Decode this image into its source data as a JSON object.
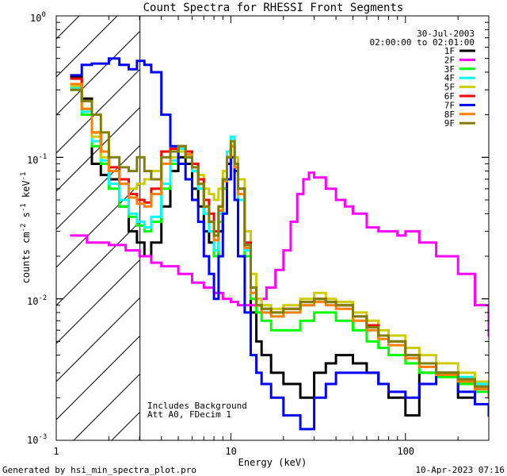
{
  "chart_data": {
    "type": "line",
    "title": "Count Spectra for RHESSI Front Segments",
    "xlabel": "Energy (keV)",
    "ylabel": {
      "base": "counts cm",
      "sup1": "-2",
      "mid1": " s",
      "sup2": "-1",
      "mid2": " keV",
      "sup3": "-1"
    },
    "xscale": "log",
    "yscale": "log",
    "xlim": [
      1,
      300
    ],
    "ylim": [
      0.001,
      1.0
    ],
    "x_ticks": [
      {
        "value": 1,
        "label": "1"
      },
      {
        "value": 10,
        "label": "10"
      },
      {
        "value": 100,
        "label": "100"
      }
    ],
    "y_ticks": [
      {
        "value": 1,
        "label": "10",
        "exp": "0"
      },
      {
        "value": 0.1,
        "label": "10",
        "exp": "-1"
      },
      {
        "value": 0.01,
        "label": "10",
        "exp": "-2"
      },
      {
        "value": 0.001,
        "label": "10",
        "exp": "-3"
      }
    ],
    "hatched_region": {
      "x_from": 1,
      "x_to": 3,
      "description": "attenuator-hatched low-energy region"
    },
    "legend": {
      "placement": "top-right",
      "date": "30-Jul-2003",
      "time_range": "02:00:00 to 02:01:00"
    },
    "annotations": [
      "Includes Background",
      "Att A0, FDecim 1"
    ],
    "series": [
      {
        "name": "1F",
        "color": "#000000",
        "x": [
          1.2,
          1.4,
          1.6,
          1.8,
          2.0,
          2.3,
          2.6,
          2.9,
          3.2,
          3.5,
          4.0,
          4.5,
          5.0,
          5.5,
          6.0,
          6.5,
          7.0,
          7.5,
          8.0,
          8.5,
          9.0,
          9.5,
          10.0,
          10.5,
          11.0,
          12,
          13,
          14,
          15,
          17,
          20,
          25,
          30,
          35,
          40,
          50,
          60,
          70,
          80,
          100,
          120,
          150,
          200,
          250,
          300
        ],
        "y": [
          0.37,
          0.26,
          0.09,
          0.075,
          0.07,
          0.045,
          0.03,
          0.025,
          0.02,
          0.025,
          0.045,
          0.08,
          0.1,
          0.09,
          0.06,
          0.045,
          0.03,
          0.025,
          0.02,
          0.03,
          0.06,
          0.09,
          0.12,
          0.08,
          0.05,
          0.02,
          0.008,
          0.005,
          0.004,
          0.003,
          0.0025,
          0.002,
          0.003,
          0.0035,
          0.004,
          0.0035,
          0.003,
          0.0025,
          0.002,
          0.0015,
          0.003,
          0.003,
          0.002,
          0.0018,
          0.0015
        ]
      },
      {
        "name": "2F",
        "color": "#ff00ff",
        "x": [
          1.2,
          1.5,
          2.0,
          2.5,
          3.0,
          3.5,
          4,
          5,
          6,
          7,
          8,
          9,
          10,
          11,
          12,
          14,
          16,
          18,
          20,
          22,
          24,
          26,
          28,
          30,
          35,
          40,
          45,
          50,
          60,
          70,
          80,
          90,
          100,
          120,
          150,
          200,
          250,
          300
        ],
        "y": [
          0.028,
          0.025,
          0.024,
          0.022,
          0.02,
          0.018,
          0.017,
          0.015,
          0.013,
          0.012,
          0.011,
          0.01,
          0.0095,
          0.009,
          0.009,
          0.01,
          0.012,
          0.016,
          0.022,
          0.035,
          0.055,
          0.07,
          0.078,
          0.072,
          0.06,
          0.05,
          0.045,
          0.04,
          0.032,
          0.03,
          0.03,
          0.028,
          0.03,
          0.025,
          0.02,
          0.015,
          0.009,
          0.0055
        ]
      },
      {
        "name": "3F",
        "color": "#00ff00",
        "x": [
          1.2,
          1.4,
          1.6,
          1.8,
          2.0,
          2.3,
          2.6,
          2.9,
          3.2,
          3.5,
          4.0,
          4.5,
          5.0,
          5.5,
          6.0,
          6.5,
          7.0,
          7.5,
          8.0,
          8.5,
          9.0,
          9.5,
          10.0,
          10.5,
          11.0,
          12,
          13,
          14,
          15,
          17,
          20,
          25,
          30,
          35,
          40,
          50,
          60,
          70,
          80,
          100,
          120,
          150,
          200,
          250,
          300
        ],
        "y": [
          0.3,
          0.2,
          0.12,
          0.09,
          0.06,
          0.045,
          0.038,
          0.033,
          0.03,
          0.035,
          0.06,
          0.09,
          0.11,
          0.1,
          0.08,
          0.06,
          0.04,
          0.03,
          0.02,
          0.035,
          0.06,
          0.1,
          0.13,
          0.09,
          0.05,
          0.02,
          0.01,
          0.008,
          0.007,
          0.006,
          0.006,
          0.007,
          0.008,
          0.008,
          0.007,
          0.006,
          0.005,
          0.0045,
          0.004,
          0.0035,
          0.003,
          0.0028,
          0.0025,
          0.0022,
          0.002
        ]
      },
      {
        "name": "4F",
        "color": "#00ffff",
        "x": [
          1.2,
          1.4,
          1.6,
          1.8,
          2.0,
          2.3,
          2.6,
          2.9,
          3.2,
          3.5,
          4.0,
          4.5,
          5.0,
          5.5,
          6.0,
          6.5,
          7.0,
          7.5,
          8.0,
          8.5,
          9.0,
          9.5,
          10.0,
          10.5,
          11.0,
          12,
          13,
          14,
          15,
          17,
          20,
          25,
          30,
          35,
          40,
          50,
          60,
          70,
          80,
          100,
          120,
          150,
          200,
          250,
          300
        ],
        "y": [
          0.31,
          0.21,
          0.13,
          0.095,
          0.065,
          0.05,
          0.04,
          0.035,
          0.032,
          0.038,
          0.065,
          0.095,
          0.115,
          0.1,
          0.08,
          0.06,
          0.04,
          0.03,
          0.022,
          0.04,
          0.07,
          0.11,
          0.14,
          0.09,
          0.05,
          0.022,
          0.012,
          0.009,
          0.008,
          0.0075,
          0.008,
          0.009,
          0.01,
          0.0095,
          0.009,
          0.0075,
          0.006,
          0.0055,
          0.005,
          0.004,
          0.0035,
          0.003,
          0.0028,
          0.0025,
          0.0022
        ]
      },
      {
        "name": "5F",
        "color": "#cccc00",
        "x": [
          1.2,
          1.4,
          1.6,
          1.8,
          2.0,
          2.3,
          2.6,
          2.9,
          3.2,
          3.5,
          4.0,
          4.5,
          5.0,
          5.5,
          6.0,
          6.5,
          7.0,
          7.5,
          8.0,
          8.5,
          9.0,
          9.5,
          10.0,
          10.5,
          11.0,
          12,
          13,
          14,
          15,
          17,
          20,
          25,
          30,
          35,
          40,
          50,
          60,
          70,
          80,
          100,
          120,
          150,
          200,
          250,
          300
        ],
        "y": [
          0.32,
          0.22,
          0.14,
          0.1,
          0.08,
          0.07,
          0.06,
          0.065,
          0.07,
          0.08,
          0.09,
          0.1,
          0.11,
          0.1,
          0.09,
          0.075,
          0.06,
          0.055,
          0.05,
          0.06,
          0.08,
          0.1,
          0.12,
          0.1,
          0.07,
          0.03,
          0.015,
          0.01,
          0.009,
          0.0085,
          0.009,
          0.01,
          0.011,
          0.01,
          0.0095,
          0.008,
          0.007,
          0.006,
          0.0055,
          0.0045,
          0.004,
          0.0035,
          0.003,
          0.0026,
          0.0023
        ]
      },
      {
        "name": "6F",
        "color": "#ff0000",
        "x": [
          1.2,
          1.4,
          1.6,
          1.8,
          2.0,
          2.3,
          2.6,
          2.9,
          3.2,
          3.5,
          4.0,
          4.5,
          5.0,
          5.5,
          6.0,
          6.5,
          7.0,
          7.5,
          8.0,
          8.5,
          9.0,
          9.5,
          10.0,
          10.5,
          11.0,
          12,
          13,
          14,
          15,
          17,
          20,
          25,
          30,
          35,
          40,
          50,
          60,
          70,
          80,
          100,
          120,
          150,
          200,
          250,
          300
        ],
        "y": [
          0.36,
          0.25,
          0.15,
          0.11,
          0.085,
          0.07,
          0.055,
          0.05,
          0.048,
          0.06,
          0.11,
          0.115,
          0.12,
          0.11,
          0.09,
          0.07,
          0.05,
          0.04,
          0.03,
          0.045,
          0.07,
          0.1,
          0.12,
          0.09,
          0.06,
          0.025,
          0.012,
          0.009,
          0.0085,
          0.008,
          0.0085,
          0.0095,
          0.01,
          0.0095,
          0.009,
          0.0075,
          0.0065,
          0.0055,
          0.005,
          0.004,
          0.0035,
          0.003,
          0.0027,
          0.0024,
          0.0021
        ]
      },
      {
        "name": "7F",
        "color": "#0000ff",
        "x": [
          1.2,
          1.4,
          1.6,
          1.8,
          2.0,
          2.3,
          2.6,
          2.9,
          3.2,
          3.5,
          4.0,
          4.5,
          5.0,
          5.5,
          6.0,
          6.5,
          7.0,
          7.5,
          8.0,
          8.5,
          9.0,
          9.5,
          10.0,
          10.5,
          11.0,
          12,
          13,
          14,
          15,
          17,
          20,
          25,
          30,
          35,
          40,
          50,
          60,
          70,
          80,
          100,
          120,
          150,
          200,
          250,
          300
        ],
        "y": [
          0.38,
          0.45,
          0.46,
          0.46,
          0.5,
          0.45,
          0.42,
          0.48,
          0.45,
          0.4,
          0.2,
          0.12,
          0.09,
          0.07,
          0.05,
          0.035,
          0.02,
          0.015,
          0.01,
          0.02,
          0.04,
          0.07,
          0.1,
          0.05,
          0.02,
          0.008,
          0.004,
          0.003,
          0.0025,
          0.002,
          0.0015,
          0.0012,
          0.002,
          0.0025,
          0.003,
          0.003,
          0.003,
          0.0025,
          0.0022,
          0.002,
          0.0025,
          0.003,
          0.0022,
          0.0018,
          0.0015
        ]
      },
      {
        "name": "8F",
        "color": "#ff7f00",
        "x": [
          1.2,
          1.4,
          1.6,
          1.8,
          2.0,
          2.3,
          2.6,
          2.9,
          3.2,
          3.5,
          4.0,
          4.5,
          5.0,
          5.5,
          6.0,
          6.5,
          7.0,
          7.5,
          8.0,
          8.5,
          9.0,
          9.5,
          10.0,
          10.5,
          11.0,
          12,
          13,
          14,
          15,
          17,
          20,
          25,
          30,
          35,
          40,
          50,
          60,
          70,
          80,
          100,
          120,
          150,
          200,
          250,
          300
        ],
        "y": [
          0.33,
          0.22,
          0.15,
          0.11,
          0.08,
          0.065,
          0.052,
          0.047,
          0.045,
          0.055,
          0.09,
          0.11,
          0.12,
          0.105,
          0.085,
          0.065,
          0.045,
          0.035,
          0.026,
          0.042,
          0.068,
          0.1,
          0.12,
          0.085,
          0.055,
          0.023,
          0.011,
          0.009,
          0.008,
          0.0075,
          0.008,
          0.009,
          0.0095,
          0.009,
          0.0085,
          0.007,
          0.006,
          0.0052,
          0.0047,
          0.0038,
          0.0033,
          0.0029,
          0.0026,
          0.0023,
          0.002
        ]
      },
      {
        "name": "9F",
        "color": "#808000",
        "x": [
          1.2,
          1.4,
          1.6,
          1.8,
          2.0,
          2.3,
          2.6,
          2.9,
          3.2,
          3.5,
          4.0,
          4.5,
          5.0,
          5.5,
          6.0,
          6.5,
          7.0,
          7.5,
          8.0,
          8.5,
          9.0,
          9.5,
          10.0,
          10.5,
          11.0,
          12,
          13,
          14,
          15,
          17,
          20,
          25,
          30,
          35,
          40,
          50,
          60,
          70,
          80,
          100,
          120,
          150,
          200,
          250,
          300
        ],
        "y": [
          0.3,
          0.25,
          0.2,
          0.15,
          0.1,
          0.085,
          0.08,
          0.1,
          0.08,
          0.07,
          0.1,
          0.11,
          0.12,
          0.1,
          0.085,
          0.065,
          0.045,
          0.035,
          0.028,
          0.045,
          0.07,
          0.1,
          0.13,
          0.09,
          0.06,
          0.024,
          0.012,
          0.009,
          0.0085,
          0.008,
          0.0085,
          0.0095,
          0.01,
          0.0095,
          0.009,
          0.0075,
          0.0063,
          0.0055,
          0.005,
          0.004,
          0.0035,
          0.003,
          0.0027,
          0.0024,
          0.0021
        ]
      }
    ]
  },
  "footer": {
    "generated_by": "Generated by hsi_min_spectra_plot.pro",
    "timestamp": "10-Apr-2023 07:16"
  }
}
